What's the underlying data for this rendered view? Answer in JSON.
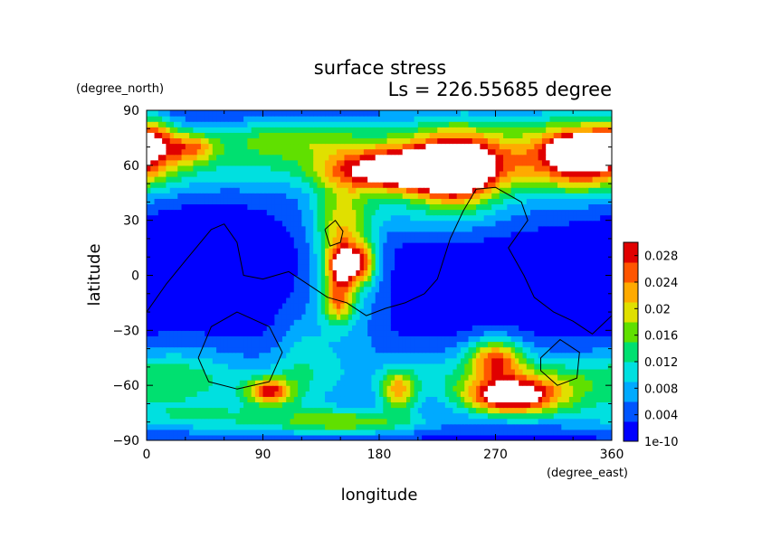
{
  "chart_data": {
    "type": "heatmap",
    "title": "surface stress",
    "subtitle": "Ls = 226.55685 degree",
    "xlabel": "longitude",
    "ylabel": "latitude",
    "x_unit": "(degree_east)",
    "y_unit": "(degree_north)",
    "xlim": [
      0,
      360
    ],
    "ylim": [
      -90,
      90
    ],
    "x_ticks": [
      "0",
      "90",
      "180",
      "270",
      "360"
    ],
    "y_ticks": [
      "90",
      "60",
      "30",
      "0",
      "−30",
      "−60",
      "−90"
    ],
    "colorbar": {
      "ticks": [
        "1e-10",
        "0.004",
        "0.008",
        "0.012",
        "0.016",
        "0.02",
        "0.024",
        "0.028"
      ],
      "range": [
        0,
        0.03
      ],
      "colors": [
        "#0000ff",
        "#0055ff",
        "#00aaff",
        "#00e0e0",
        "#00e070",
        "#60e000",
        "#e0e000",
        "#ffaa00",
        "#ff5500",
        "#e00000"
      ]
    },
    "blobs": [
      {
        "lon": 200,
        "lat": 57,
        "dlon": 40,
        "dlat": 8,
        "value": 0.026
      },
      {
        "lon": 195,
        "lat": 58,
        "dlon": 10,
        "dlat": 3,
        "value": 0.032
      },
      {
        "lon": 240,
        "lat": 57,
        "dlon": 22,
        "dlat": 14,
        "value": 0.022
      },
      {
        "lon": 210,
        "lat": 68,
        "dlon": 60,
        "dlat": 14,
        "value": 0.013
      },
      {
        "lon": 340,
        "lat": 66,
        "dlon": 28,
        "dlat": 13,
        "value": 0.027
      },
      {
        "lon": 332,
        "lat": 68,
        "dlon": 10,
        "dlat": 4,
        "value": 0.034
      },
      {
        "lon": 100,
        "lat": 75,
        "dlon": 40,
        "dlat": 8,
        "value": 0.012
      },
      {
        "lon": 35,
        "lat": 70,
        "dlon": 14,
        "dlat": 6,
        "value": 0.014
      },
      {
        "lon": 5,
        "lat": 75,
        "dlon": 12,
        "dlat": 8,
        "value": 0.012
      },
      {
        "lon": 60,
        "lat": 58,
        "dlon": 60,
        "dlat": 10,
        "value": 0.008
      },
      {
        "lon": 290,
        "lat": 65,
        "dlon": 45,
        "dlat": 18,
        "value": 0.009
      },
      {
        "lon": 150,
        "lat": 20,
        "dlon": 14,
        "dlat": 20,
        "value": 0.012
      },
      {
        "lon": 152,
        "lat": 5,
        "dlon": 8,
        "dlat": 8,
        "value": 0.019
      },
      {
        "lon": 168,
        "lat": 7,
        "dlon": 8,
        "dlat": 8,
        "value": 0.014
      },
      {
        "lon": 148,
        "lat": -15,
        "dlon": 8,
        "dlat": 8,
        "value": 0.014
      },
      {
        "lon": 155,
        "lat": -5,
        "dlon": 20,
        "dlat": 40,
        "value": 0.007
      },
      {
        "lon": 200,
        "lat": 35,
        "dlon": 60,
        "dlat": 10,
        "value": 0.006
      },
      {
        "lon": 270,
        "lat": -45,
        "dlon": 15,
        "dlat": 8,
        "value": 0.019
      },
      {
        "lon": 280,
        "lat": -66,
        "dlon": 25,
        "dlat": 7,
        "value": 0.025
      },
      {
        "lon": 310,
        "lat": -60,
        "dlon": 35,
        "dlat": 12,
        "value": 0.013
      },
      {
        "lon": 230,
        "lat": -55,
        "dlon": 40,
        "dlat": 12,
        "value": 0.008
      },
      {
        "lon": 95,
        "lat": -63,
        "dlon": 12,
        "dlat": 5,
        "value": 0.02
      },
      {
        "lon": 195,
        "lat": -63,
        "dlon": 10,
        "dlat": 8,
        "value": 0.016
      },
      {
        "lon": 160,
        "lat": -80,
        "dlon": 45,
        "dlat": 5,
        "value": 0.013
      },
      {
        "lon": 80,
        "lat": -60,
        "dlon": 55,
        "dlat": 15,
        "value": 0.007
      },
      {
        "lon": 20,
        "lat": -55,
        "dlon": 30,
        "dlat": 12,
        "value": 0.008
      },
      {
        "lon": 40,
        "lat": -78,
        "dlon": 55,
        "dlat": 6,
        "value": 0.007
      },
      {
        "lon": 120,
        "lat": -45,
        "dlon": 15,
        "dlat": 20,
        "value": 0.006
      }
    ],
    "contours": [
      [
        [
          0,
          -20
        ],
        [
          15,
          -5
        ],
        [
          30,
          8
        ],
        [
          50,
          25
        ],
        [
          60,
          28
        ],
        [
          70,
          18
        ],
        [
          75,
          0
        ],
        [
          90,
          -2
        ],
        [
          110,
          2
        ],
        [
          125,
          -5
        ],
        [
          140,
          -12
        ],
        [
          155,
          -15
        ],
        [
          170,
          -22
        ],
        [
          185,
          -18
        ],
        [
          200,
          -15
        ],
        [
          215,
          -10
        ],
        [
          225,
          -2
        ],
        [
          235,
          20
        ],
        [
          245,
          35
        ],
        [
          255,
          47
        ],
        [
          270,
          48
        ],
        [
          290,
          40
        ],
        [
          295,
          30
        ],
        [
          280,
          15
        ],
        [
          292,
          0
        ],
        [
          300,
          -12
        ],
        [
          315,
          -20
        ],
        [
          330,
          -25
        ],
        [
          345,
          -32
        ],
        [
          360,
          -22
        ]
      ],
      [
        [
          138,
          25
        ],
        [
          142,
          16
        ],
        [
          150,
          18
        ],
        [
          152,
          24
        ],
        [
          146,
          30
        ],
        [
          138,
          25
        ]
      ],
      [
        [
          40,
          -45
        ],
        [
          50,
          -28
        ],
        [
          70,
          -20
        ],
        [
          95,
          -28
        ],
        [
          105,
          -42
        ],
        [
          95,
          -58
        ],
        [
          70,
          -62
        ],
        [
          48,
          -58
        ],
        [
          40,
          -45
        ]
      ],
      [
        [
          305,
          -45
        ],
        [
          320,
          -35
        ],
        [
          335,
          -42
        ],
        [
          333,
          -56
        ],
        [
          318,
          -60
        ],
        [
          305,
          -52
        ],
        [
          305,
          -45
        ]
      ]
    ]
  }
}
